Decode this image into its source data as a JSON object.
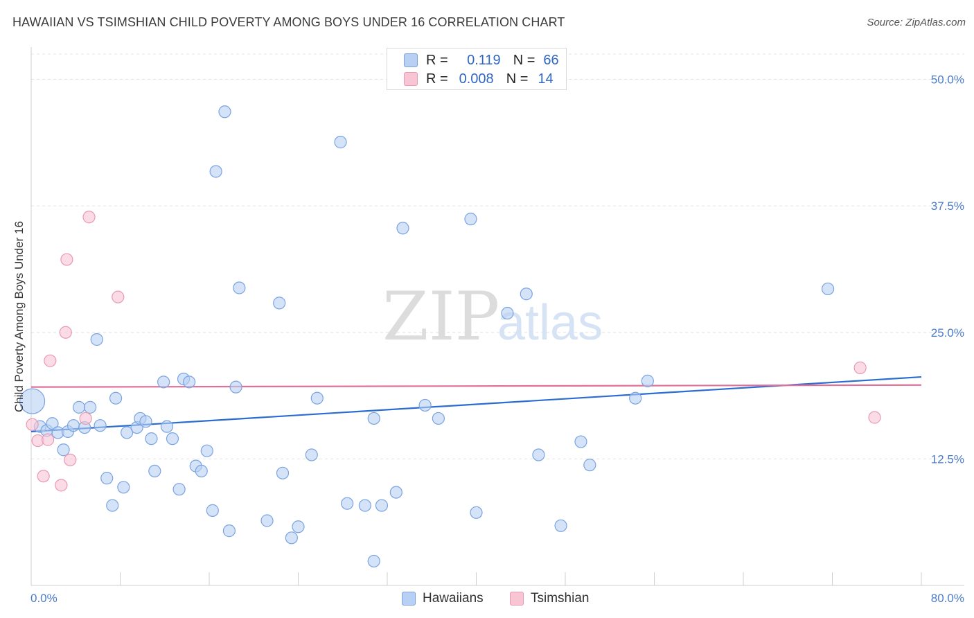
{
  "title": "HAWAIIAN VS TSIMSHIAN CHILD POVERTY AMONG BOYS UNDER 16 CORRELATION CHART",
  "source": "Source: ZipAtlas.com",
  "watermark": {
    "zip": "ZIP",
    "atlas": "atlas"
  },
  "legend": {
    "rows": [
      {
        "r_label": "R =",
        "r_value": "0.119",
        "n_label": "N =",
        "n_value": "66",
        "fill": "#b7d0f3",
        "stroke": "#7aa3e0"
      },
      {
        "r_label": "R =",
        "r_value": "0.008",
        "n_label": "N =",
        "n_value": "14",
        "fill": "#f8c5d5",
        "stroke": "#e899b3"
      }
    ]
  },
  "bottom_legend": {
    "hawaiians": "Hawaiians",
    "tsimshian": "Tsimshian"
  },
  "chart_data": {
    "type": "scatter",
    "xlabel": "",
    "ylabel": "Child Poverty Among Boys Under 16",
    "xlim": [
      0,
      80
    ],
    "ylim": [
      0,
      52.5
    ],
    "x_tick_labels": [
      "0.0%",
      "80.0%"
    ],
    "y_ticks": [
      12.5,
      25.0,
      37.5,
      50.0
    ],
    "y_tick_labels": [
      "12.5%",
      "25.0%",
      "37.5%",
      "50.0%"
    ],
    "grid": true,
    "series": [
      {
        "name": "Hawaiians",
        "color": "#7aa3e0",
        "fill": "#b7d0f3",
        "trend_color": "#2a6ccf",
        "trend": {
          "x": [
            0,
            80
          ],
          "y": [
            15.2,
            20.6
          ]
        },
        "points": [
          {
            "x": 0.1,
            "y": 18.2,
            "big": true
          },
          {
            "x": 0.8,
            "y": 15.7
          },
          {
            "x": 1.4,
            "y": 15.3
          },
          {
            "x": 1.9,
            "y": 16.0
          },
          {
            "x": 2.4,
            "y": 15.1
          },
          {
            "x": 2.9,
            "y": 13.4
          },
          {
            "x": 3.3,
            "y": 15.2
          },
          {
            "x": 3.8,
            "y": 15.8
          },
          {
            "x": 4.3,
            "y": 17.6
          },
          {
            "x": 4.8,
            "y": 15.6
          },
          {
            "x": 5.3,
            "y": 17.6
          },
          {
            "x": 5.9,
            "y": 24.3
          },
          {
            "x": 6.2,
            "y": 15.8
          },
          {
            "x": 6.8,
            "y": 10.6
          },
          {
            "x": 7.3,
            "y": 7.9
          },
          {
            "x": 7.6,
            "y": 18.5
          },
          {
            "x": 8.3,
            "y": 9.7
          },
          {
            "x": 8.6,
            "y": 15.1
          },
          {
            "x": 9.5,
            "y": 15.6
          },
          {
            "x": 9.8,
            "y": 16.5
          },
          {
            "x": 10.3,
            "y": 16.2
          },
          {
            "x": 10.8,
            "y": 14.5
          },
          {
            "x": 11.1,
            "y": 11.3
          },
          {
            "x": 11.9,
            "y": 20.1
          },
          {
            "x": 12.2,
            "y": 15.7
          },
          {
            "x": 12.7,
            "y": 14.5
          },
          {
            "x": 13.3,
            "y": 9.5
          },
          {
            "x": 13.7,
            "y": 20.4
          },
          {
            "x": 14.2,
            "y": 20.1
          },
          {
            "x": 14.8,
            "y": 11.8
          },
          {
            "x": 15.3,
            "y": 11.3
          },
          {
            "x": 15.8,
            "y": 13.3
          },
          {
            "x": 16.3,
            "y": 7.4
          },
          {
            "x": 16.6,
            "y": 40.9
          },
          {
            "x": 17.4,
            "y": 46.8
          },
          {
            "x": 17.8,
            "y": 5.4
          },
          {
            "x": 18.4,
            "y": 19.6
          },
          {
            "x": 18.7,
            "y": 29.4
          },
          {
            "x": 21.2,
            "y": 6.4
          },
          {
            "x": 22.3,
            "y": 27.9
          },
          {
            "x": 22.6,
            "y": 11.1
          },
          {
            "x": 23.4,
            "y": 4.7
          },
          {
            "x": 24.0,
            "y": 5.8
          },
          {
            "x": 25.2,
            "y": 12.9
          },
          {
            "x": 25.7,
            "y": 18.5
          },
          {
            "x": 27.8,
            "y": 43.8
          },
          {
            "x": 28.4,
            "y": 8.1
          },
          {
            "x": 30.0,
            "y": 7.9
          },
          {
            "x": 30.8,
            "y": 16.5
          },
          {
            "x": 30.8,
            "y": 2.4
          },
          {
            "x": 31.5,
            "y": 7.9
          },
          {
            "x": 32.8,
            "y": 9.2
          },
          {
            "x": 33.4,
            "y": 35.3
          },
          {
            "x": 35.4,
            "y": 17.8
          },
          {
            "x": 36.6,
            "y": 16.5
          },
          {
            "x": 39.5,
            "y": 36.2
          },
          {
            "x": 40.0,
            "y": 7.2
          },
          {
            "x": 42.8,
            "y": 26.9
          },
          {
            "x": 44.5,
            "y": 28.8
          },
          {
            "x": 45.6,
            "y": 12.9
          },
          {
            "x": 47.6,
            "y": 5.9
          },
          {
            "x": 49.4,
            "y": 14.2
          },
          {
            "x": 50.2,
            "y": 11.9
          },
          {
            "x": 54.3,
            "y": 18.5
          },
          {
            "x": 55.4,
            "y": 20.2
          },
          {
            "x": 71.6,
            "y": 29.3
          }
        ]
      },
      {
        "name": "Tsimshian",
        "color": "#e899b3",
        "fill": "#f8c5d5",
        "trend_color": "#e0709a",
        "trend": {
          "x": [
            0,
            80
          ],
          "y": [
            19.6,
            19.8
          ]
        },
        "points": [
          {
            "x": 0.1,
            "y": 15.9
          },
          {
            "x": 0.6,
            "y": 14.3
          },
          {
            "x": 1.1,
            "y": 10.8
          },
          {
            "x": 1.5,
            "y": 14.4
          },
          {
            "x": 1.7,
            "y": 22.2
          },
          {
            "x": 2.7,
            "y": 9.9
          },
          {
            "x": 3.1,
            "y": 25.0
          },
          {
            "x": 3.2,
            "y": 32.2
          },
          {
            "x": 3.5,
            "y": 12.4
          },
          {
            "x": 4.9,
            "y": 16.5
          },
          {
            "x": 5.2,
            "y": 36.4
          },
          {
            "x": 7.8,
            "y": 28.5
          },
          {
            "x": 74.5,
            "y": 21.5
          },
          {
            "x": 75.8,
            "y": 16.6
          }
        ]
      }
    ]
  }
}
